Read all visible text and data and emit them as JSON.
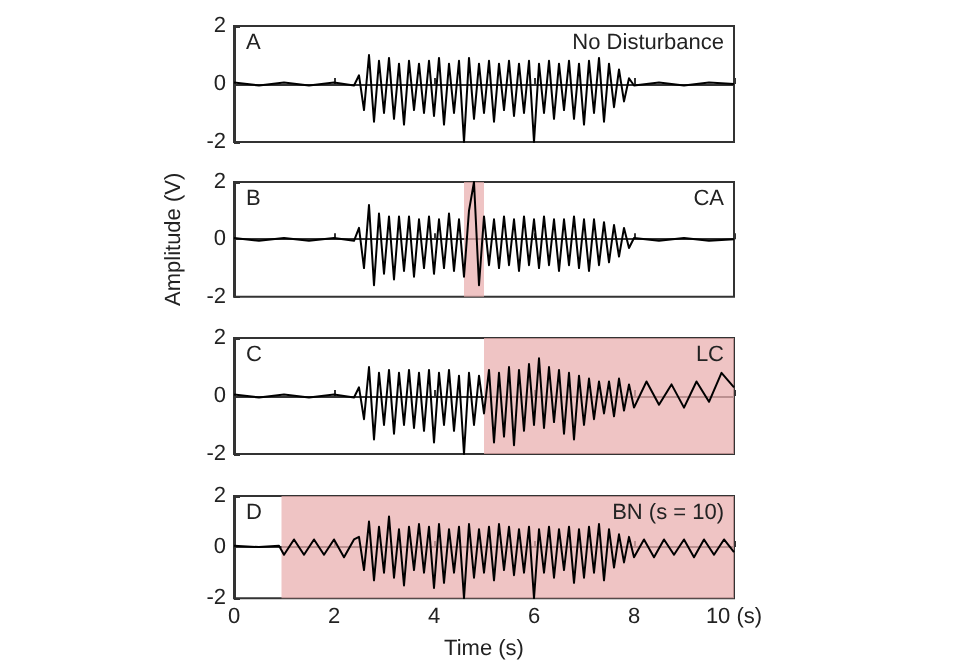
{
  "chart_data": [
    {
      "type": "line",
      "annotations": [
        "A",
        "No Disturbance"
      ],
      "color": "#000000",
      "tick_labels": "y",
      "xlim": [
        0,
        10
      ],
      "xticks": [
        0,
        2,
        4,
        6,
        8,
        10
      ],
      "ylim": [
        -2,
        2
      ],
      "yticks": [
        -2,
        0,
        2
      ],
      "x": [
        0,
        0.5,
        1,
        1.5,
        2,
        2.4,
        2.5,
        2.6,
        2.7,
        2.8,
        2.9,
        3.0,
        3.1,
        3.2,
        3.3,
        3.4,
        3.5,
        3.6,
        3.7,
        3.8,
        3.9,
        4.0,
        4.1,
        4.2,
        4.3,
        4.4,
        4.5,
        4.6,
        4.7,
        4.8,
        4.9,
        5.0,
        5.1,
        5.2,
        5.3,
        5.4,
        5.5,
        5.6,
        5.7,
        5.8,
        5.9,
        6.0,
        6.1,
        6.2,
        6.3,
        6.4,
        6.5,
        6.6,
        6.7,
        6.8,
        6.9,
        7.0,
        7.1,
        7.2,
        7.3,
        7.4,
        7.5,
        7.6,
        7.7,
        7.8,
        7.9,
        8.0,
        8.5,
        9.0,
        9.5,
        10
      ],
      "values": [
        0.05,
        -0.05,
        0.05,
        -0.05,
        0.05,
        -0.05,
        0.3,
        -0.9,
        1.0,
        -1.3,
        0.8,
        -1.0,
        0.9,
        -1.2,
        0.7,
        -1.4,
        0.8,
        -0.9,
        0.7,
        -1.0,
        0.8,
        -1.1,
        0.9,
        -1.4,
        0.7,
        -1.0,
        0.8,
        -2.0,
        0.9,
        -1.2,
        0.7,
        -1.0,
        0.8,
        -1.3,
        0.7,
        -0.9,
        0.8,
        -1.1,
        0.7,
        -1.0,
        0.8,
        -2.0,
        0.7,
        -1.0,
        0.8,
        -1.2,
        0.7,
        -0.9,
        0.8,
        -1.2,
        0.7,
        -1.4,
        0.8,
        -1.0,
        0.9,
        -1.3,
        0.7,
        -0.8,
        0.5,
        -0.6,
        0.2,
        -0.05,
        0.05,
        -0.05,
        0.05,
        0
      ]
    },
    {
      "type": "line",
      "annotations": [
        "B",
        "CA"
      ],
      "ylabel": "Amplitude (V)",
      "color": "#000000",
      "tick_labels": "y",
      "xlim": [
        0,
        10
      ],
      "xticks": [
        0,
        2,
        4,
        6,
        8,
        10
      ],
      "ylim": [
        -2,
        2
      ],
      "yticks": [
        -2,
        0,
        2
      ],
      "bands": [
        {
          "axis": "x",
          "from": 4.6,
          "to": 5.0,
          "color": "#eab0b0"
        }
      ],
      "x": [
        0,
        0.5,
        1,
        1.5,
        2,
        2.4,
        2.5,
        2.6,
        2.7,
        2.8,
        2.9,
        3.0,
        3.1,
        3.2,
        3.3,
        3.4,
        3.5,
        3.6,
        3.7,
        3.8,
        3.9,
        4.0,
        4.1,
        4.2,
        4.3,
        4.4,
        4.5,
        4.6,
        4.7,
        4.8,
        4.9,
        5.0,
        5.1,
        5.2,
        5.3,
        5.4,
        5.5,
        5.6,
        5.7,
        5.8,
        5.9,
        6.0,
        6.1,
        6.2,
        6.3,
        6.4,
        6.5,
        6.6,
        6.7,
        6.8,
        6.9,
        7.0,
        7.1,
        7.2,
        7.3,
        7.4,
        7.5,
        7.6,
        7.7,
        7.8,
        7.9,
        8.0,
        8.5,
        9.0,
        9.5,
        10
      ],
      "values": [
        0.05,
        -0.05,
        0.05,
        -0.05,
        0.05,
        -0.05,
        0.4,
        -1.0,
        1.2,
        -1.6,
        0.9,
        -1.2,
        0.8,
        -1.4,
        0.8,
        -1.1,
        0.8,
        -1.3,
        0.7,
        -1.0,
        0.8,
        -1.2,
        0.7,
        -1.0,
        0.9,
        -1.1,
        0.7,
        -1.3,
        1.0,
        2.0,
        -1.6,
        0.8,
        -0.9,
        0.7,
        -1.0,
        0.8,
        -0.9,
        0.7,
        -1.1,
        0.8,
        -0.9,
        0.7,
        -1.0,
        0.8,
        -0.9,
        0.7,
        -1.1,
        0.7,
        -0.9,
        0.8,
        -1.0,
        0.7,
        -1.1,
        0.7,
        -0.9,
        0.6,
        -0.8,
        0.5,
        -0.6,
        0.4,
        -0.3,
        0.05,
        -0.05,
        0.05,
        -0.05,
        0
      ]
    },
    {
      "type": "line",
      "annotations": [
        "C",
        "LC"
      ],
      "color": "#000000",
      "tick_labels": "y",
      "xlim": [
        0,
        10
      ],
      "xticks": [
        0,
        2,
        4,
        6,
        8,
        10
      ],
      "ylim": [
        -2,
        2
      ],
      "yticks": [
        -2,
        0,
        2
      ],
      "bands": [
        {
          "axis": "x",
          "from": 5.0,
          "to": 10,
          "color": "#eab0b0"
        }
      ],
      "x": [
        0,
        0.5,
        1,
        1.5,
        2,
        2.4,
        2.5,
        2.6,
        2.7,
        2.8,
        2.9,
        3.0,
        3.1,
        3.2,
        3.3,
        3.4,
        3.5,
        3.6,
        3.7,
        3.8,
        3.9,
        4.0,
        4.1,
        4.2,
        4.3,
        4.4,
        4.5,
        4.6,
        4.7,
        4.8,
        4.9,
        5.0,
        5.1,
        5.2,
        5.3,
        5.4,
        5.5,
        5.6,
        5.7,
        5.8,
        5.9,
        6.0,
        6.1,
        6.2,
        6.3,
        6.4,
        6.5,
        6.6,
        6.7,
        6.8,
        6.9,
        7.0,
        7.1,
        7.2,
        7.3,
        7.4,
        7.5,
        7.6,
        7.7,
        7.8,
        7.9,
        8.0,
        8.25,
        8.5,
        8.75,
        9.0,
        9.25,
        9.5,
        9.75,
        10
      ],
      "values": [
        0.05,
        -0.05,
        0.05,
        -0.05,
        0.05,
        -0.05,
        0.3,
        -0.8,
        1.0,
        -1.5,
        0.8,
        -1.0,
        0.9,
        -1.3,
        0.8,
        -1.0,
        0.9,
        -1.1,
        0.8,
        -1.2,
        0.9,
        -1.6,
        0.8,
        -1.0,
        0.9,
        -1.2,
        0.7,
        -2.0,
        0.8,
        -1.0,
        0.7,
        -0.6,
        0.9,
        -1.6,
        0.8,
        -1.4,
        1.0,
        -1.7,
        0.9,
        -1.2,
        1.1,
        -1.0,
        1.3,
        -1.1,
        1.0,
        -0.9,
        0.9,
        -1.3,
        0.8,
        -1.5,
        0.7,
        -1.0,
        0.6,
        -0.8,
        0.5,
        -0.6,
        0.5,
        -0.7,
        0.6,
        -0.5,
        0.4,
        -0.4,
        0.5,
        -0.3,
        0.4,
        -0.4,
        0.5,
        -0.2,
        0.8,
        0.3
      ]
    },
    {
      "type": "line",
      "annotations": [
        "D",
        "BN (s = 10)"
      ],
      "color": "#000000",
      "xlabel": "Time (s)",
      "xlim": [
        0,
        10
      ],
      "xticks": [
        0,
        2,
        4,
        6,
        8,
        {
          "value": 10,
          "label": "10 (s)"
        }
      ],
      "ylim": [
        -2,
        2
      ],
      "yticks": [
        -2,
        0,
        2
      ],
      "bands": [
        {
          "axis": "x",
          "from": 0.95,
          "to": 10,
          "color": "#eab0b0"
        }
      ],
      "x": [
        0,
        0.5,
        0.9,
        1.0,
        1.2,
        1.4,
        1.6,
        1.8,
        2.0,
        2.2,
        2.4,
        2.5,
        2.6,
        2.7,
        2.8,
        2.9,
        3.0,
        3.1,
        3.2,
        3.3,
        3.4,
        3.5,
        3.6,
        3.7,
        3.8,
        3.9,
        4.0,
        4.1,
        4.2,
        4.3,
        4.4,
        4.5,
        4.6,
        4.7,
        4.8,
        4.9,
        5.0,
        5.1,
        5.2,
        5.3,
        5.4,
        5.5,
        5.6,
        5.7,
        5.8,
        5.9,
        6.0,
        6.1,
        6.2,
        6.3,
        6.4,
        6.5,
        6.6,
        6.7,
        6.8,
        6.9,
        7.0,
        7.1,
        7.2,
        7.3,
        7.4,
        7.5,
        7.6,
        7.7,
        7.8,
        7.9,
        8.0,
        8.2,
        8.4,
        8.6,
        8.8,
        9.0,
        9.2,
        9.4,
        9.6,
        9.8,
        10
      ],
      "values": [
        0.05,
        0,
        0.05,
        -0.3,
        0.3,
        -0.3,
        0.3,
        -0.3,
        0.3,
        -0.4,
        0.3,
        0.4,
        -0.9,
        1.0,
        -1.3,
        0.8,
        -1.0,
        1.2,
        -1.2,
        0.7,
        -1.5,
        0.8,
        -0.9,
        0.9,
        -1.0,
        0.8,
        -1.6,
        0.9,
        -1.4,
        0.7,
        -1.0,
        0.8,
        -2.0,
        0.9,
        -1.2,
        0.7,
        -1.0,
        0.8,
        -1.3,
        0.9,
        -0.9,
        0.8,
        -1.1,
        0.7,
        -1.0,
        0.8,
        -2.0,
        0.7,
        -1.0,
        0.8,
        -1.2,
        0.7,
        -0.9,
        0.8,
        -1.4,
        0.7,
        -1.2,
        0.8,
        -1.0,
        0.9,
        -1.3,
        0.7,
        -0.8,
        0.5,
        -0.6,
        0.4,
        -0.4,
        0.3,
        -0.4,
        0.3,
        -0.3,
        0.3,
        -0.4,
        0.3,
        -0.3,
        0.3,
        -0.2
      ]
    }
  ]
}
